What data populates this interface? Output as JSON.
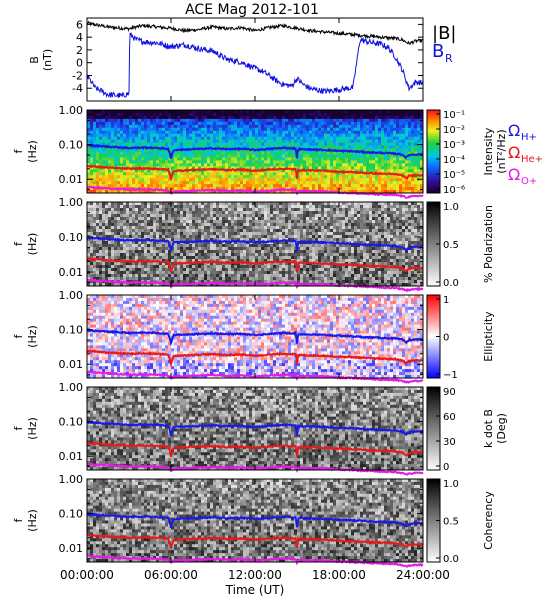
{
  "title": "ACE Mag 2012-101",
  "colors": {
    "axis": "#000000",
    "br": "#1010e0",
    "h_plus": "#1a1ae6",
    "he_plus": "#e61a1a",
    "o_plus": "#e61ae6"
  },
  "legend_top": {
    "b_total": "|B|",
    "br_main": "B",
    "br_sub": "R"
  },
  "legend_ion": [
    {
      "main": "Ω",
      "sub": "H+",
      "color": "#1a1ae6"
    },
    {
      "main": "Ω",
      "sub": "He+",
      "color": "#e61a1a"
    },
    {
      "main": "Ω",
      "sub": "O+",
      "color": "#e61ae6"
    }
  ],
  "xaxis": {
    "label": "Time (UT)",
    "range_hours": [
      0,
      24
    ],
    "ticks": [
      "00:00:00",
      "06:00:00",
      "12:00:00",
      "18:00:00",
      "24:00:00"
    ]
  },
  "chart_data": [
    {
      "type": "line",
      "panel": "magnetic-field",
      "ylabel_main": "B",
      "ylabel_unit": "(nT)",
      "ylim": [
        -6,
        7
      ],
      "yticks": [
        "6",
        "4",
        "2",
        "0",
        "-2",
        "-4"
      ],
      "series": [
        {
          "name": "|B|",
          "x": [
            0,
            0.5,
            1,
            1.5,
            2,
            2.5,
            3,
            3.5,
            4,
            5,
            6,
            7,
            8,
            9,
            10,
            11,
            12,
            13,
            14,
            14.5,
            15,
            15.5,
            16,
            17,
            18,
            19,
            20,
            21,
            22,
            22.5,
            23,
            23.5,
            24
          ],
          "values": [
            6.2,
            6.0,
            5.8,
            5.6,
            5.5,
            5.4,
            5.3,
            5.6,
            5.8,
            5.6,
            5.4,
            5.0,
            5.2,
            5.6,
            5.3,
            5.5,
            5.0,
            5.5,
            5.8,
            5.6,
            5.4,
            5.2,
            5.0,
            4.8,
            4.6,
            4.4,
            4.2,
            4.0,
            3.8,
            3.6,
            3.0,
            3.4,
            3.5
          ]
        },
        {
          "name": "B",
          "x": [
            0,
            0.3,
            0.6,
            1,
            1.5,
            2,
            2.5,
            3,
            3.05,
            3.5,
            4,
            5,
            6,
            7,
            8,
            9,
            10,
            11,
            12,
            12.5,
            13,
            13.5,
            14,
            14.5,
            14.6,
            15,
            15.5,
            16,
            16.5,
            17,
            18,
            19,
            19.5,
            20,
            21,
            21.5,
            22,
            22.5,
            23,
            23.5,
            24
          ],
          "values": [
            -2.0,
            -3.0,
            -4.0,
            -4.4,
            -5.0,
            -5.1,
            -5.2,
            -4.8,
            4.5,
            3.6,
            3.3,
            3.1,
            2.5,
            2.8,
            2.2,
            1.8,
            0.5,
            0.1,
            -0.9,
            -1.3,
            -2.0,
            -2.8,
            -3.4,
            -3.6,
            -3.7,
            -2.5,
            -3.5,
            -4.1,
            -4.3,
            -4.5,
            -4.2,
            -3.9,
            3.6,
            3.3,
            2.9,
            2.4,
            1.0,
            -1.0,
            -4.0,
            -3.0,
            -3.2
          ]
        }
      ]
    },
    {
      "type": "heatmap",
      "panel": "intensity",
      "ylabel_main": "f",
      "ylabel_unit": "(Hz)",
      "ylim": [
        0.004,
        1.0
      ],
      "yscale": "log",
      "yticks": [
        "1.00",
        "0.10",
        "0.01"
      ],
      "colorbar": {
        "label": "Intensity",
        "unit": "(nT²/Hz)",
        "ticks": [
          "10⁻¹",
          "10⁻²",
          "10⁻³",
          "10⁻⁴",
          "10⁻⁵",
          "10⁻⁶"
        ],
        "palette": "rainbow"
      },
      "gyrofrequency_lines": true
    },
    {
      "type": "heatmap",
      "panel": "polarization",
      "ylabel_main": "f",
      "ylabel_unit": "(Hz)",
      "ylim": [
        0.004,
        1.0
      ],
      "yscale": "log",
      "yticks": [
        "1.00",
        "0.10",
        "0.01"
      ],
      "colorbar": {
        "label": "% Polarization",
        "ticks": [
          "1.0",
          "0.5",
          "0.0"
        ],
        "palette": "gray"
      },
      "gyrofrequency_lines": true
    },
    {
      "type": "heatmap",
      "panel": "ellipticity",
      "ylabel_main": "f",
      "ylabel_unit": "(Hz)",
      "ylim": [
        0.004,
        1.0
      ],
      "yscale": "log",
      "yticks": [
        "1.00",
        "0.10",
        "0.01"
      ],
      "colorbar": {
        "label": "Ellipticity",
        "ticks": [
          "1",
          "0",
          "−1"
        ],
        "palette": "bluewhitered"
      },
      "gyrofrequency_lines": true
    },
    {
      "type": "heatmap",
      "panel": "wave-normal-angle",
      "ylabel_main": "f",
      "ylabel_unit": "(Hz)",
      "ylim": [
        0.004,
        1.0
      ],
      "yscale": "log",
      "yticks": [
        "1.00",
        "0.10",
        "0.01"
      ],
      "colorbar": {
        "label": "k dot B",
        "unit": "(Deg)",
        "ticks": [
          "90",
          "60",
          "30",
          "0"
        ],
        "palette": "gray"
      },
      "gyrofrequency_lines": true
    },
    {
      "type": "heatmap",
      "panel": "coherency",
      "ylabel_main": "f",
      "ylabel_unit": "(Hz)",
      "ylim": [
        0.004,
        1.0
      ],
      "yscale": "log",
      "yticks": [
        "1.00",
        "0.10",
        "0.01"
      ],
      "colorbar": {
        "label": "Coherency",
        "ticks": [
          "1.0",
          "0.5",
          "0.0"
        ],
        "palette": "gray"
      },
      "gyrofrequency_lines": true
    }
  ],
  "gyrofrequencies_hz": {
    "x": [
      0,
      1,
      2,
      3,
      4,
      5,
      5.8,
      6.0,
      6.2,
      7,
      8,
      9,
      10,
      11,
      12,
      13,
      14,
      14.9,
      15.0,
      15.1,
      16,
      17,
      18,
      19,
      20,
      21,
      22,
      22.5,
      22.8,
      23,
      23.5,
      24
    ],
    "h_plus": [
      0.095,
      0.09,
      0.085,
      0.08,
      0.082,
      0.08,
      0.075,
      0.04,
      0.07,
      0.072,
      0.075,
      0.078,
      0.074,
      0.076,
      0.07,
      0.075,
      0.08,
      0.078,
      0.04,
      0.074,
      0.072,
      0.07,
      0.066,
      0.064,
      0.06,
      0.058,
      0.055,
      0.052,
      0.042,
      0.05,
      0.052,
      0.052
    ],
    "he_plus": [
      0.024,
      0.0225,
      0.021,
      0.02,
      0.0205,
      0.02,
      0.019,
      0.01,
      0.0175,
      0.018,
      0.019,
      0.0195,
      0.0185,
      0.019,
      0.0175,
      0.019,
      0.02,
      0.0195,
      0.01,
      0.0185,
      0.018,
      0.0175,
      0.0165,
      0.016,
      0.015,
      0.0145,
      0.014,
      0.013,
      0.0105,
      0.0125,
      0.013,
      0.013
    ],
    "o_plus": [
      0.006,
      0.0056,
      0.0053,
      0.005,
      0.0051,
      0.005,
      0.0047,
      0.0038,
      0.0044,
      0.0045,
      0.0047,
      0.0049,
      0.0046,
      0.0048,
      0.0044,
      0.0047,
      0.005,
      0.0049,
      0.0038,
      0.0046,
      0.0045,
      0.0044,
      0.0041,
      0.004,
      0.0038,
      0.0036,
      0.0035,
      0.0033,
      0.003,
      0.0031,
      0.0033,
      0.0033
    ]
  }
}
